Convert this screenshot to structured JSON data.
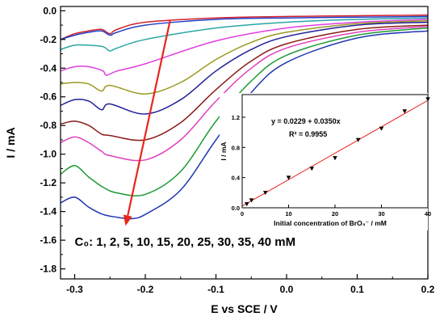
{
  "chart_data": [
    {
      "type": "line",
      "xlabel": "E vs SCE / V",
      "ylabel": "I / mA",
      "xlim": [
        -0.32,
        0.2
      ],
      "ylim": [
        -1.87,
        0.03
      ],
      "xticks": [
        -0.3,
        -0.2,
        -0.1,
        0.0,
        0.1,
        0.2
      ],
      "xtick_labels": [
        "-0.3",
        "-0.2",
        "-0.1",
        "0.0",
        "0.1",
        "0.2"
      ],
      "yticks": [
        0.0,
        -0.2,
        -0.4,
        -0.6,
        -0.8,
        -1.0,
        -1.2,
        -1.4,
        -1.6,
        -1.8
      ],
      "ytick_labels": [
        "0.0",
        "-0.2",
        "-0.4",
        "-0.6",
        "-0.8",
        "-1.0",
        "-1.2",
        "-1.4",
        "-1.6",
        "-1.8"
      ],
      "grid": false,
      "annotation": "C₀: 1, 2, 5, 10, 15, 20, 25, 30, 35, 40 mM",
      "arrow": {
        "from": [
          -0.165,
          -0.07
        ],
        "to": [
          -0.228,
          -1.5
        ],
        "color": "#e8251c"
      },
      "series": [
        {
          "color": "#d0202a",
          "x": [
            -0.32,
            -0.3,
            -0.28,
            -0.262,
            -0.25,
            -0.24,
            -0.2,
            -0.1,
            0.0,
            0.1,
            0.2
          ],
          "y": [
            -0.2,
            -0.16,
            -0.14,
            -0.13,
            -0.16,
            -0.13,
            -0.08,
            -0.05,
            -0.04,
            -0.035,
            -0.03
          ]
        },
        {
          "color": "#2040c8",
          "x": [
            -0.32,
            -0.3,
            -0.28,
            -0.262,
            -0.25,
            -0.24,
            -0.2,
            -0.1,
            0.0,
            0.1,
            0.2
          ],
          "y": [
            -0.2,
            -0.17,
            -0.15,
            -0.14,
            -0.17,
            -0.15,
            -0.1,
            -0.06,
            -0.05,
            -0.045,
            -0.04
          ]
        },
        {
          "color": "#2aa6a6",
          "x": [
            -0.32,
            -0.3,
            -0.28,
            -0.26,
            -0.25,
            -0.24,
            -0.2,
            -0.1,
            0.0,
            0.1,
            0.2
          ],
          "y": [
            -0.27,
            -0.24,
            -0.24,
            -0.25,
            -0.28,
            -0.26,
            -0.2,
            -0.12,
            -0.08,
            -0.06,
            -0.05
          ]
        },
        {
          "color": "#e040e0",
          "x": [
            -0.32,
            -0.3,
            -0.28,
            -0.26,
            -0.255,
            -0.24,
            -0.2,
            -0.1,
            0.0,
            0.1,
            0.2
          ],
          "y": [
            -0.42,
            -0.39,
            -0.39,
            -0.42,
            -0.45,
            -0.42,
            -0.37,
            -0.21,
            -0.12,
            -0.08,
            -0.06
          ]
        },
        {
          "color": "#9a9a20",
          "x": [
            -0.32,
            -0.3,
            -0.28,
            -0.262,
            -0.25,
            -0.2,
            -0.15,
            -0.1,
            -0.05,
            0.0,
            0.1,
            0.2
          ],
          "y": [
            -0.51,
            -0.5,
            -0.51,
            -0.56,
            -0.52,
            -0.58,
            -0.5,
            -0.34,
            -0.22,
            -0.15,
            -0.09,
            -0.07
          ]
        },
        {
          "color": "#20209a",
          "x": [
            -0.32,
            -0.3,
            -0.28,
            -0.262,
            -0.25,
            -0.2,
            -0.15,
            -0.1,
            -0.05,
            0.0,
            0.1,
            0.2
          ],
          "y": [
            -0.66,
            -0.62,
            -0.63,
            -0.69,
            -0.65,
            -0.72,
            -0.62,
            -0.42,
            -0.27,
            -0.18,
            -0.1,
            -0.08
          ]
        },
        {
          "color": "#8a1c18",
          "x": [
            -0.32,
            -0.3,
            -0.28,
            -0.262,
            -0.25,
            -0.2,
            -0.15,
            -0.1,
            -0.05,
            0.0,
            0.1,
            0.2
          ],
          "y": [
            -0.79,
            -0.77,
            -0.8,
            -0.86,
            -0.87,
            -0.9,
            -0.78,
            -0.55,
            -0.35,
            -0.23,
            -0.13,
            -0.1
          ]
        },
        {
          "color": "#e040c0",
          "x": [
            -0.32,
            -0.3,
            -0.28,
            -0.262,
            -0.25,
            -0.2,
            -0.15,
            -0.1,
            -0.05,
            0.0,
            0.1,
            0.2
          ],
          "y": [
            -0.92,
            -0.88,
            -0.92,
            -0.98,
            -1.01,
            -1.04,
            -0.9,
            -0.63,
            -0.4,
            -0.26,
            -0.15,
            -0.11
          ]
        },
        {
          "color": "#1e9a36",
          "x": [
            -0.32,
            -0.3,
            -0.28,
            -0.26,
            -0.24,
            -0.2,
            -0.15,
            -0.1,
            -0.05,
            0.0,
            0.1,
            0.2
          ],
          "y": [
            -1.14,
            -1.08,
            -1.16,
            -1.23,
            -1.27,
            -1.28,
            -1.12,
            -0.77,
            -0.49,
            -0.31,
            -0.17,
            -0.12
          ]
        },
        {
          "color": "#2038b0",
          "x": [
            -0.32,
            -0.3,
            -0.28,
            -0.26,
            -0.24,
            -0.22,
            -0.2,
            -0.15,
            -0.1,
            -0.05,
            0.0,
            0.1,
            0.2
          ],
          "y": [
            -1.34,
            -1.3,
            -1.37,
            -1.42,
            -1.44,
            -1.45,
            -1.42,
            -1.25,
            -0.9,
            -0.57,
            -0.36,
            -0.19,
            -0.14
          ]
        }
      ]
    },
    {
      "type": "scatter",
      "xlabel": "Initial concentration of BrO₃⁻ / mM",
      "ylabel": "I / mA",
      "xlim": [
        0,
        40
      ],
      "ylim": [
        0,
        1.5
      ],
      "xticks": [
        0,
        10,
        20,
        30,
        40
      ],
      "yticks": [
        0.0,
        0.4,
        0.8,
        1.2
      ],
      "ytick_labels": [
        "0.0",
        "0.4",
        "0.8",
        "1.2"
      ],
      "equation": "y = 0.0229 + 0.0350x",
      "r2_text": "R² = 0.9955",
      "fit": {
        "intercept": 0.0229,
        "slope": 0.035,
        "color": "#e8251c"
      },
      "x": [
        1,
        2,
        5,
        10,
        15,
        20,
        25,
        30,
        35,
        40
      ],
      "y": [
        0.05,
        0.1,
        0.2,
        0.4,
        0.52,
        0.66,
        0.9,
        1.05,
        1.28,
        1.44
      ]
    }
  ]
}
